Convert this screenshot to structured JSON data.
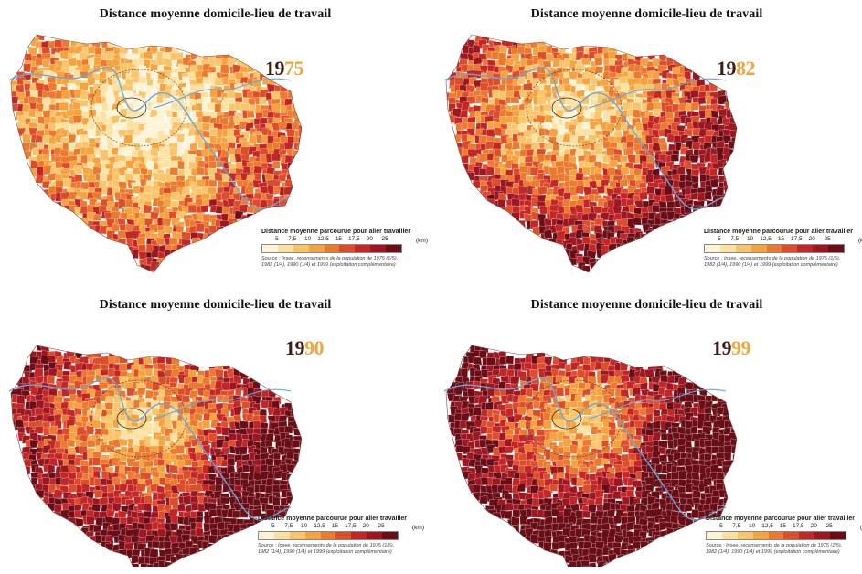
{
  "palette": [
    "#fdf3d6",
    "#fbe2a2",
    "#f9c56a",
    "#f5a33f",
    "#ec7a2e",
    "#de4d2a",
    "#c42626",
    "#9d1620",
    "#6b0d17"
  ],
  "river_color": "#6aa6d8",
  "legend": {
    "title": "Distance moyenne parcourue pour aller travailler",
    "ticks": [
      "5",
      "7,5",
      "10",
      "12,5",
      "15",
      "17,5",
      "20",
      "25"
    ],
    "unit": "(km)",
    "source_line1": "Source : Insee, recensements de la population de 1975 (1/5),",
    "source_line2": "1982 (1/4), 1990 (1/4) et 1999 (exploitation complémentaire)"
  },
  "panels": [
    {
      "title": "Distance moyenne domicile-lieu de travail",
      "year_prefix": "19",
      "year_suffix": "75",
      "intensity": 0.35
    },
    {
      "title": "Distance moyenne domicile-lieu de travail",
      "year_prefix": "19",
      "year_suffix": "82",
      "intensity": 0.55
    },
    {
      "title": "Distance moyenne domicile-lieu de travail",
      "year_prefix": "19",
      "year_suffix": "90",
      "intensity": 0.72
    },
    {
      "title": "Distance moyenne domicile-lieu de travail",
      "year_prefix": "19",
      "year_suffix": "99",
      "intensity": 0.88
    }
  ]
}
